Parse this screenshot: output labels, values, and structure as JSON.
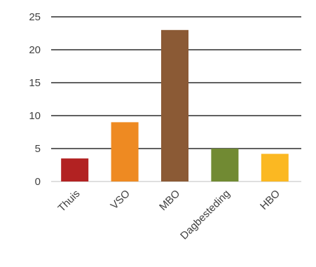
{
  "chart_data": {
    "type": "bar",
    "title": "",
    "xlabel": "",
    "ylabel": "",
    "categories": [
      "Thuis",
      "VSO",
      "MBO",
      "Dagbesteding",
      "HBO"
    ],
    "values": [
      3.5,
      9,
      23,
      5,
      4.2
    ],
    "colors": [
      "#b22222",
      "#ee8a22",
      "#8b5a35",
      "#718a33",
      "#fbb822"
    ],
    "ylim": [
      0,
      25
    ],
    "yticks": [
      0,
      5,
      10,
      15,
      20,
      25
    ],
    "grid": true,
    "legend": "none"
  }
}
